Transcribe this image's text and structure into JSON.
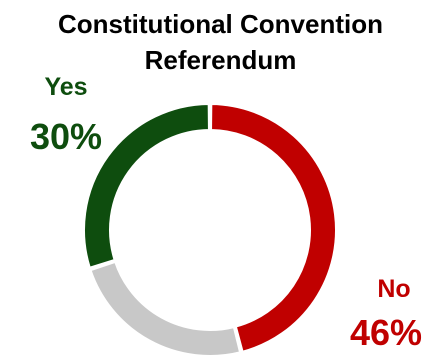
{
  "chart_data": {
    "type": "pie",
    "title_line1": "Constitutional Convention",
    "title_line2": "Referendum",
    "slices": [
      {
        "name": "No",
        "value": 46,
        "label": "46%",
        "color": "#c00000"
      },
      {
        "name": "",
        "value": 24,
        "label": "",
        "color": "#c8c8c8"
      },
      {
        "name": "Yes",
        "value": 30,
        "label": "30%",
        "color": "#0e4d0e"
      }
    ],
    "style": "donut",
    "start": "12 o'clock, clockwise"
  },
  "colors": {
    "yes": "#0e4d0e",
    "no": "#c00000",
    "other": "#c8c8c8"
  }
}
